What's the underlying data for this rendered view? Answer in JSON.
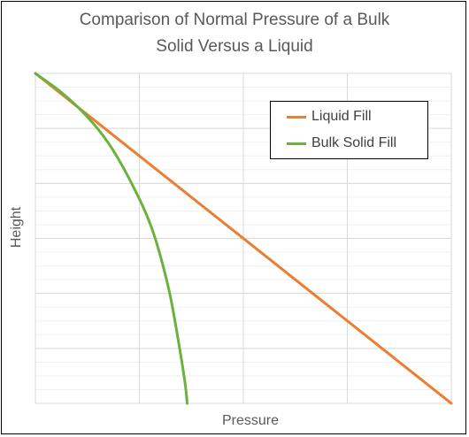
{
  "chart_data": {
    "type": "line",
    "title_lines": [
      "Comparison of Normal Pressure of a Bulk",
      "Solid Versus a Liquid"
    ],
    "xlabel": "Pressure",
    "ylabel": "Height",
    "xlim": [
      0,
      10
    ],
    "ylim": [
      0,
      10
    ],
    "grid": true,
    "legend": "top-right",
    "series": [
      {
        "name": "Liquid Fill",
        "color": "#ED7D31",
        "points": [
          [
            0,
            10
          ],
          [
            10,
            0
          ]
        ]
      },
      {
        "name": "Bulk Solid Fill",
        "color": "#6AB23E",
        "points": [
          [
            0,
            10
          ],
          [
            0.6,
            9.45
          ],
          [
            1.2,
            8.75
          ],
          [
            1.75,
            7.9
          ],
          [
            2.3,
            6.7
          ],
          [
            2.8,
            5.3
          ],
          [
            3.2,
            3.5
          ],
          [
            3.45,
            1.8
          ],
          [
            3.6,
            0.6
          ],
          [
            3.65,
            0
          ]
        ]
      }
    ]
  }
}
